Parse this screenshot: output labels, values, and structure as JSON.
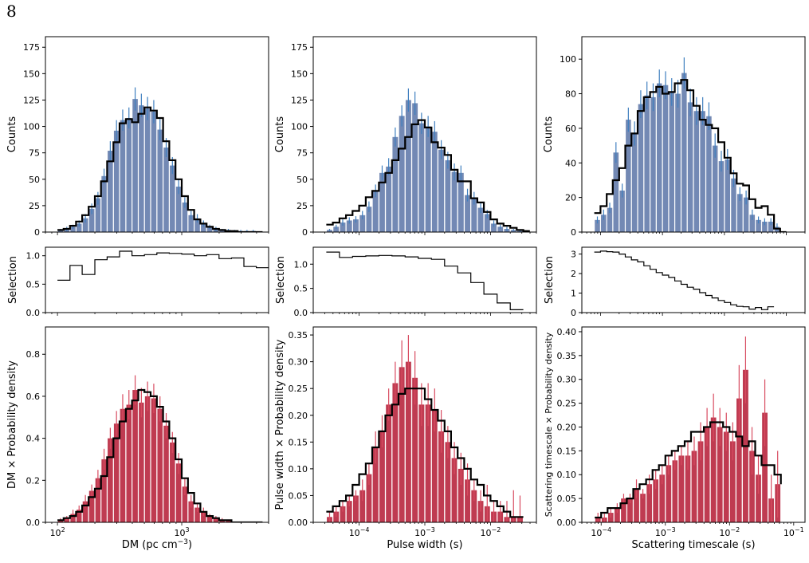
{
  "page_number": "8",
  "colors": {
    "top_bars": "#7389b4",
    "top_errors": "#3f7fbf",
    "bottom_bars": "#bf3b51",
    "bottom_errors": "#d84b60",
    "line": "#000000"
  },
  "chart_data": [
    {
      "id": "dm-counts",
      "type": "bar",
      "col": 0,
      "row": 0,
      "xscale": "log",
      "xlim": [
        80,
        5000
      ],
      "ylim": [
        0,
        185
      ],
      "ylabel": "Counts",
      "yticks": [
        0,
        25,
        50,
        75,
        100,
        125,
        150,
        175
      ],
      "xticks": [],
      "xlabel": "",
      "bin_edges": [
        100,
        112,
        126,
        141,
        158,
        178,
        200,
        224,
        251,
        282,
        316,
        355,
        398,
        447,
        501,
        562,
        631,
        708,
        794,
        891,
        1000,
        1122,
        1259,
        1413,
        1585,
        1778,
        1995,
        2239,
        2512,
        2818,
        3162,
        3548,
        3981,
        4467
      ],
      "values": [
        2,
        3,
        5,
        8,
        13,
        22,
        32,
        53,
        77,
        96,
        106,
        108,
        126,
        120,
        117,
        114,
        97,
        80,
        63,
        43,
        28,
        16,
        13,
        8,
        5,
        3,
        2,
        2,
        1,
        1,
        1,
        1,
        0
      ],
      "errors": [
        1,
        2,
        2,
        3,
        4,
        5,
        6,
        7,
        9,
        10,
        10,
        10,
        11,
        11,
        11,
        11,
        10,
        9,
        8,
        7,
        5,
        4,
        4,
        3,
        2,
        2,
        1,
        1,
        1,
        1,
        1,
        1,
        0
      ],
      "model": [
        2,
        3,
        6,
        10,
        16,
        24,
        34,
        48,
        67,
        85,
        103,
        107,
        104,
        112,
        118,
        115,
        108,
        86,
        68,
        50,
        34,
        21,
        12,
        8,
        5,
        3,
        2,
        1,
        1,
        0,
        0,
        0,
        0
      ]
    },
    {
      "id": "width-counts",
      "type": "bar",
      "col": 1,
      "row": 0,
      "xscale": "log",
      "xlim": [
        2e-05,
        0.05
      ],
      "ylim": [
        0,
        185
      ],
      "ylabel": "Counts",
      "yticks": [
        0,
        25,
        50,
        75,
        100,
        125,
        150,
        175
      ],
      "xticks": [],
      "xlabel": "",
      "bin_edges": [
        3.16e-05,
        3.98e-05,
        5.01e-05,
        6.31e-05,
        7.94e-05,
        0.0001,
        0.000126,
        0.000158,
        0.0002,
        0.000251,
        0.000316,
        0.000398,
        0.000501,
        0.000631,
        0.000794,
        0.001,
        0.00126,
        0.00158,
        0.002,
        0.00251,
        0.00316,
        0.00398,
        0.00501,
        0.00631,
        0.00794,
        0.01,
        0.0126,
        0.0158,
        0.02,
        0.0251,
        0.0316,
        0.0398
      ],
      "values": [
        2,
        5,
        9,
        11,
        12,
        16,
        24,
        39,
        56,
        62,
        90,
        110,
        125,
        122,
        103,
        100,
        95,
        78,
        68,
        57,
        56,
        35,
        32,
        23,
        17,
        8,
        5,
        3,
        2,
        1,
        0
      ],
      "errors": [
        1,
        2,
        3,
        3,
        3,
        4,
        5,
        6,
        7,
        8,
        9,
        10,
        11,
        11,
        10,
        10,
        10,
        9,
        8,
        8,
        7,
        6,
        6,
        5,
        4,
        3,
        2,
        2,
        1,
        1,
        0
      ],
      "model": [
        7,
        9,
        13,
        16,
        20,
        25,
        33,
        39,
        47,
        56,
        68,
        79,
        90,
        102,
        106,
        99,
        85,
        80,
        73,
        59,
        48,
        48,
        32,
        28,
        19,
        12,
        8,
        6,
        4,
        2,
        1
      ]
    },
    {
      "id": "scatter-counts",
      "type": "bar",
      "col": 2,
      "row": 0,
      "xscale": "log",
      "xlim": [
        5e-05,
        0.2
      ],
      "ylim": [
        0,
        113
      ],
      "ylabel": "Counts",
      "yticks": [
        0,
        20,
        40,
        60,
        80,
        100
      ],
      "xticks": [],
      "xlabel": "",
      "bin_edges": [
        7.94e-05,
        0.0001,
        0.000126,
        0.000158,
        0.0002,
        0.000251,
        0.000316,
        0.000398,
        0.000501,
        0.000631,
        0.000794,
        0.001,
        0.00126,
        0.00158,
        0.002,
        0.00251,
        0.00316,
        0.00398,
        0.00501,
        0.00631,
        0.00794,
        0.01,
        0.0126,
        0.0158,
        0.02,
        0.0251,
        0.0316,
        0.0398,
        0.0501,
        0.0631,
        0.0794,
        0.1
      ],
      "values": [
        7,
        10,
        14,
        46,
        24,
        65,
        57,
        74,
        79,
        78,
        86,
        85,
        81,
        80,
        92,
        75,
        70,
        70,
        67,
        50,
        41,
        42,
        31,
        22,
        20,
        10,
        7,
        6,
        6,
        3,
        0
      ],
      "errors": [
        2,
        3,
        3,
        6,
        4,
        7,
        7,
        8,
        8,
        8,
        8,
        8,
        8,
        8,
        9,
        8,
        8,
        8,
        8,
        7,
        6,
        6,
        5,
        4,
        4,
        3,
        2,
        2,
        2,
        2,
        0
      ],
      "model": [
        11,
        15,
        22,
        30,
        37,
        50,
        57,
        70,
        78,
        81,
        84,
        80,
        81,
        86,
        88,
        82,
        73,
        65,
        62,
        60,
        52,
        43,
        34,
        28,
        27,
        19,
        14,
        15,
        10,
        2,
        0
      ]
    },
    {
      "id": "dm-selection",
      "type": "line",
      "col": 0,
      "row": 1,
      "xscale": "log",
      "xlim": [
        80,
        5000
      ],
      "ylim": [
        0,
        1.15
      ],
      "ylabel": "Selection",
      "yticks": [
        0.0,
        0.5,
        1.0
      ],
      "xticks": [],
      "xlabel": "",
      "bin_edges": [
        100,
        126,
        158,
        200,
        251,
        316,
        398,
        501,
        631,
        794,
        1000,
        1259,
        1585,
        1995,
        2512,
        3162,
        3981,
        5012
      ],
      "values": [
        0.57,
        0.83,
        0.67,
        0.93,
        0.98,
        1.08,
        1.0,
        1.02,
        1.05,
        1.04,
        1.03,
        1.0,
        1.02,
        0.95,
        0.96,
        0.81,
        0.79
      ]
    },
    {
      "id": "width-selection",
      "type": "line",
      "col": 1,
      "row": 1,
      "xscale": "log",
      "xlim": [
        2e-05,
        0.05
      ],
      "ylim": [
        0,
        1.35
      ],
      "ylabel": "Selection",
      "yticks": [
        0.0,
        0.5,
        1.0
      ],
      "xticks": [],
      "xlabel": "",
      "bin_edges": [
        3.16e-05,
        5.01e-05,
        7.94e-05,
        0.000126,
        0.0002,
        0.000316,
        0.000501,
        0.000794,
        0.00126,
        0.002,
        0.00316,
        0.00501,
        0.00794,
        0.0126,
        0.02,
        0.0316
      ],
      "values": [
        1.25,
        1.14,
        1.16,
        1.17,
        1.18,
        1.17,
        1.15,
        1.12,
        1.1,
        0.96,
        0.82,
        0.62,
        0.38,
        0.2,
        0.06
      ]
    },
    {
      "id": "scatter-selection",
      "type": "line",
      "col": 2,
      "row": 1,
      "xscale": "log",
      "xlim": [
        5e-05,
        0.2
      ],
      "ylim": [
        0,
        3.35
      ],
      "ylabel": "Selection",
      "yticks": [
        0,
        1,
        2,
        3
      ],
      "xticks": [],
      "xlabel": "",
      "bin_edges": [
        7.94e-05,
        0.0001,
        0.000126,
        0.000158,
        0.0002,
        0.000251,
        0.000316,
        0.000398,
        0.000501,
        0.000631,
        0.000794,
        0.001,
        0.00126,
        0.00158,
        0.002,
        0.00251,
        0.00316,
        0.00398,
        0.00501,
        0.00631,
        0.00794,
        0.01,
        0.0126,
        0.0158,
        0.02,
        0.0251,
        0.0316,
        0.0398,
        0.0501,
        0.0631
      ],
      "values": [
        3.1,
        3.15,
        3.12,
        3.1,
        3.0,
        2.85,
        2.7,
        2.6,
        2.4,
        2.22,
        2.05,
        1.92,
        1.8,
        1.62,
        1.45,
        1.3,
        1.2,
        1.02,
        0.88,
        0.75,
        0.62,
        0.52,
        0.4,
        0.32,
        0.3,
        0.18,
        0.26,
        0.15,
        0.3
      ]
    },
    {
      "id": "dm-density",
      "type": "bar",
      "col": 0,
      "row": 2,
      "xscale": "log",
      "xlim": [
        80,
        5000
      ],
      "ylim": [
        0,
        0.93
      ],
      "ylabel": "DM × Probability density",
      "yticks": [
        0.0,
        0.2,
        0.4,
        0.6,
        0.8
      ],
      "xticks": [
        100,
        1000
      ],
      "xtick_labels": [
        "10",
        "10"
      ],
      "xtick_exps": [
        "2",
        "3"
      ],
      "xlabel": "DM (pc cm",
      "xlabel_exp": "−3",
      "xlabel_end": ")",
      "bin_edges": [
        100,
        112,
        126,
        141,
        158,
        178,
        200,
        224,
        251,
        282,
        316,
        355,
        398,
        447,
        501,
        562,
        631,
        708,
        794,
        891,
        1000,
        1122,
        1259,
        1413,
        1585,
        1778,
        1995,
        2239,
        2512,
        2818,
        3162,
        3548,
        3981,
        4467
      ],
      "values": [
        0.01,
        0.02,
        0.04,
        0.06,
        0.1,
        0.15,
        0.21,
        0.3,
        0.4,
        0.47,
        0.54,
        0.56,
        0.63,
        0.57,
        0.6,
        0.59,
        0.54,
        0.46,
        0.38,
        0.28,
        0.17,
        0.1,
        0.07,
        0.05,
        0.03,
        0.02,
        0.01,
        0.01,
        0.0,
        0.0,
        0.0,
        0.0,
        0.0
      ],
      "errors": [
        0.01,
        0.01,
        0.02,
        0.02,
        0.03,
        0.03,
        0.04,
        0.05,
        0.05,
        0.06,
        0.07,
        0.07,
        0.07,
        0.07,
        0.07,
        0.07,
        0.06,
        0.06,
        0.05,
        0.05,
        0.04,
        0.03,
        0.02,
        0.02,
        0.01,
        0.01,
        0.01,
        0.0,
        0.0,
        0.0,
        0.0,
        0.0,
        0.0
      ],
      "model": [
        0.01,
        0.02,
        0.03,
        0.05,
        0.08,
        0.12,
        0.16,
        0.22,
        0.31,
        0.4,
        0.48,
        0.54,
        0.58,
        0.63,
        0.62,
        0.6,
        0.55,
        0.48,
        0.4,
        0.3,
        0.21,
        0.14,
        0.09,
        0.05,
        0.03,
        0.02,
        0.01,
        0.01,
        0.0,
        0.0,
        0.0,
        0.0,
        0.0
      ]
    },
    {
      "id": "width-density",
      "type": "bar",
      "col": 1,
      "row": 2,
      "xscale": "log",
      "xlim": [
        2e-05,
        0.05
      ],
      "ylim": [
        0,
        0.365
      ],
      "ylabel": "Pulse width × Probability density",
      "yticks": [
        0.0,
        0.05,
        0.1,
        0.15,
        0.2,
        0.25,
        0.3,
        0.35
      ],
      "xticks": [
        0.0001,
        0.001,
        0.01
      ],
      "xtick_labels": [
        "10",
        "10",
        "10"
      ],
      "xtick_exps": [
        "−4",
        "−3",
        "−2"
      ],
      "xlabel": "Pulse width (s)",
      "xlabel_exp": "",
      "xlabel_end": "",
      "bin_edges": [
        3.16e-05,
        3.98e-05,
        5.01e-05,
        6.31e-05,
        7.94e-05,
        0.0001,
        0.000126,
        0.000158,
        0.0002,
        0.000251,
        0.000316,
        0.000398,
        0.000501,
        0.000631,
        0.000794,
        0.001,
        0.00126,
        0.00158,
        0.002,
        0.00251,
        0.00316,
        0.00398,
        0.00501,
        0.00631,
        0.00794,
        0.01,
        0.0126,
        0.0158,
        0.02,
        0.0251,
        0.0316
      ],
      "values": [
        0.01,
        0.02,
        0.03,
        0.04,
        0.05,
        0.06,
        0.09,
        0.14,
        0.17,
        0.22,
        0.26,
        0.29,
        0.3,
        0.27,
        0.22,
        0.22,
        0.21,
        0.17,
        0.15,
        0.12,
        0.1,
        0.08,
        0.06,
        0.04,
        0.03,
        0.02,
        0.02,
        0.01,
        0.01,
        0.01
      ],
      "errors": [
        0.01,
        0.01,
        0.01,
        0.01,
        0.01,
        0.02,
        0.02,
        0.03,
        0.03,
        0.03,
        0.04,
        0.05,
        0.05,
        0.05,
        0.04,
        0.04,
        0.04,
        0.04,
        0.03,
        0.03,
        0.03,
        0.03,
        0.02,
        0.02,
        0.04,
        0.02,
        0.02,
        0.03,
        0.05,
        0.04
      ],
      "model": [
        0.02,
        0.03,
        0.04,
        0.05,
        0.07,
        0.09,
        0.11,
        0.14,
        0.17,
        0.2,
        0.22,
        0.24,
        0.25,
        0.25,
        0.25,
        0.23,
        0.21,
        0.19,
        0.17,
        0.14,
        0.12,
        0.1,
        0.08,
        0.07,
        0.05,
        0.04,
        0.03,
        0.02,
        0.01,
        0.01
      ]
    },
    {
      "id": "scatter-density",
      "type": "bar",
      "col": 2,
      "row": 2,
      "xscale": "log",
      "xlim": [
        5e-05,
        0.15
      ],
      "ylim": [
        0,
        0.41
      ],
      "ylabel": "Scattering timescale × Probability density",
      "yticks": [
        0.0,
        0.05,
        0.1,
        0.15,
        0.2,
        0.25,
        0.3,
        0.35,
        0.4
      ],
      "xticks": [
        0.0001,
        0.001,
        0.01,
        0.1
      ],
      "xtick_labels": [
        "10",
        "10",
        "10",
        "10"
      ],
      "xtick_exps": [
        "−4",
        "−3",
        "−2",
        "−1"
      ],
      "xlabel": "Scattering timescale (s)",
      "xlabel_exp": "",
      "xlabel_end": "",
      "bin_edges": [
        7.94e-05,
        0.0001,
        0.000126,
        0.000158,
        0.0002,
        0.000251,
        0.000316,
        0.000398,
        0.000501,
        0.000631,
        0.000794,
        0.001,
        0.00126,
        0.00158,
        0.002,
        0.00251,
        0.00316,
        0.00398,
        0.00501,
        0.00631,
        0.00794,
        0.01,
        0.0126,
        0.0158,
        0.02,
        0.0251,
        0.0316,
        0.0398,
        0.0501,
        0.0631
      ],
      "values": [
        0.01,
        0.01,
        0.02,
        0.03,
        0.05,
        0.05,
        0.07,
        0.06,
        0.08,
        0.09,
        0.1,
        0.12,
        0.13,
        0.14,
        0.14,
        0.15,
        0.17,
        0.2,
        0.22,
        0.2,
        0.19,
        0.17,
        0.26,
        0.32,
        0.15,
        0.1,
        0.23,
        0.05,
        0.08,
        0.04
      ],
      "errors": [
        0.01,
        0.01,
        0.01,
        0.01,
        0.01,
        0.01,
        0.02,
        0.01,
        0.02,
        0.02,
        0.02,
        0.02,
        0.02,
        0.02,
        0.03,
        0.03,
        0.04,
        0.04,
        0.05,
        0.04,
        0.04,
        0.04,
        0.07,
        0.07,
        0.05,
        0.04,
        0.07,
        0.05,
        0.07,
        0.05
      ],
      "model": [
        0.01,
        0.02,
        0.03,
        0.03,
        0.04,
        0.05,
        0.07,
        0.08,
        0.09,
        0.11,
        0.12,
        0.14,
        0.15,
        0.16,
        0.17,
        0.19,
        0.19,
        0.2,
        0.21,
        0.21,
        0.2,
        0.19,
        0.18,
        0.16,
        0.17,
        0.14,
        0.12,
        0.12,
        0.1,
        0.08
      ]
    }
  ]
}
